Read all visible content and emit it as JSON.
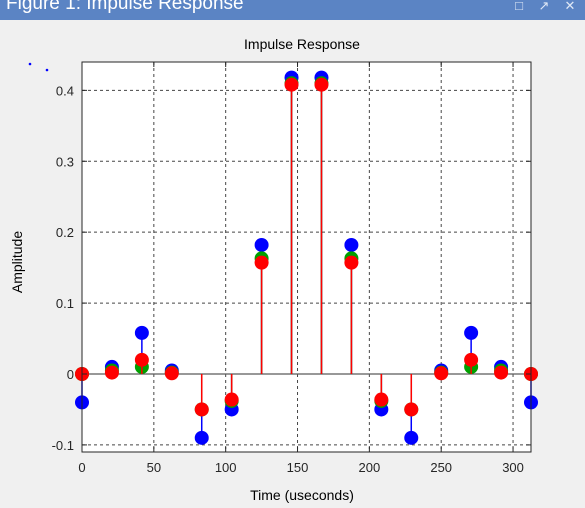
{
  "window": {
    "title": "Figure 1: Impulse Response"
  },
  "chart_data": {
    "type": "stem",
    "title": "Impulse Response",
    "xlabel": "Time (useconds)",
    "ylabel": "Amplitude",
    "xlim": [
      0,
      312.5
    ],
    "ylim": [
      -0.11,
      0.44
    ],
    "xticks": [
      0,
      50,
      100,
      150,
      200,
      250,
      300
    ],
    "yticks": [
      -0.1,
      0,
      0.1,
      0.2,
      0.3,
      0.4
    ],
    "ytick_labels": [
      "-0.1",
      "0",
      "0.1",
      "0.2",
      "0.3",
      "0.4"
    ],
    "grid": true,
    "x": [
      0,
      20.83,
      41.67,
      62.5,
      83.33,
      104.17,
      125,
      145.83,
      166.67,
      187.5,
      208.33,
      229.17,
      250,
      270.83,
      291.67,
      312.5
    ],
    "series": [
      {
        "color": "#0000ff",
        "values": [
          -0.04,
          0.01,
          0.058,
          0.005,
          -0.09,
          -0.05,
          0.182,
          0.418,
          0.418,
          0.182,
          -0.05,
          -0.09,
          0.005,
          0.058,
          0.01,
          -0.04
        ]
      },
      {
        "color": "#00a000",
        "values": [
          0.0,
          0.005,
          0.01,
          0.002,
          -0.05,
          -0.038,
          0.163,
          0.41,
          0.41,
          0.163,
          -0.038,
          -0.05,
          0.002,
          0.01,
          0.005,
          0.0
        ]
      },
      {
        "color": "#ff0000",
        "values": [
          0.0,
          0.002,
          0.02,
          0.001,
          -0.05,
          -0.036,
          0.157,
          0.408,
          0.408,
          0.157,
          -0.036,
          -0.05,
          0.001,
          0.02,
          0.002,
          0.0
        ]
      }
    ]
  }
}
